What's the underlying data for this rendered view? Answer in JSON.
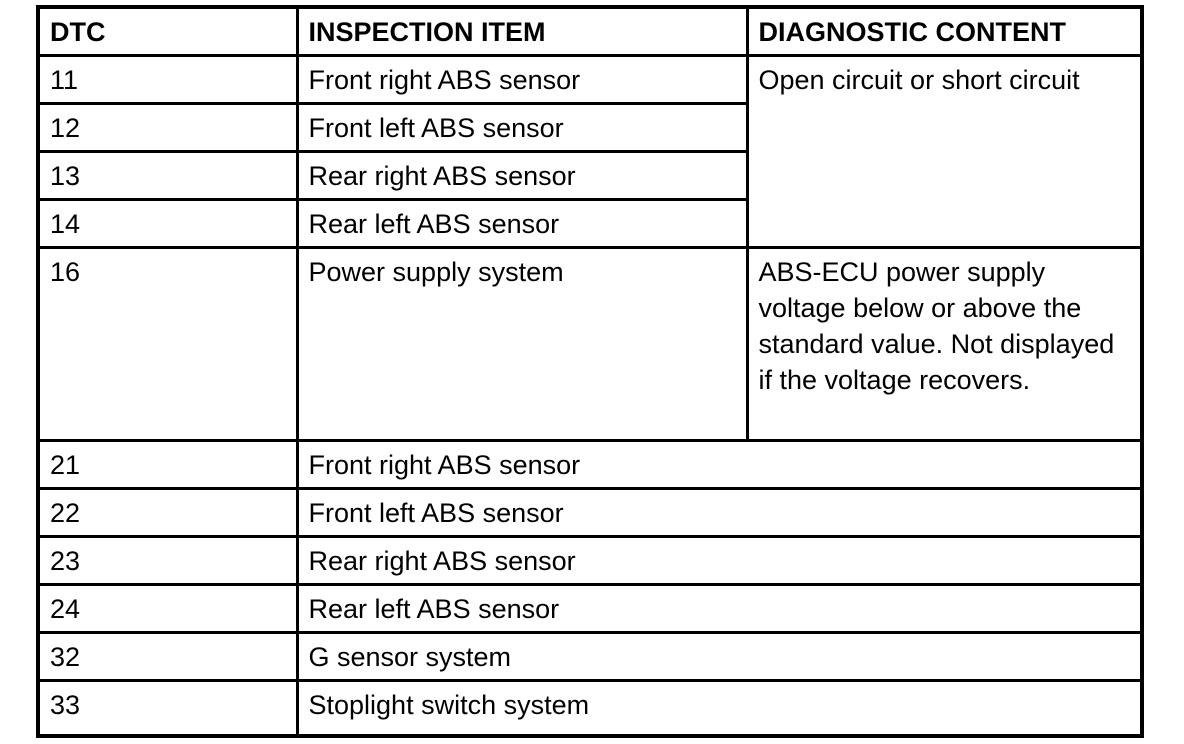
{
  "table": {
    "headers": {
      "dtc": "DTC",
      "inspection_item": "INSPECTION ITEM",
      "diagnostic_content": "DIAGNOSTIC CONTENT"
    },
    "rows": [
      {
        "dtc": "11",
        "item": "Front right ABS sensor",
        "content": "Open circuit or short circuit"
      },
      {
        "dtc": "12",
        "item": "Front left ABS sensor"
      },
      {
        "dtc": "13",
        "item": "Rear right ABS sensor"
      },
      {
        "dtc": "14",
        "item": "Rear left ABS sensor"
      },
      {
        "dtc": "16",
        "item": "Power supply system",
        "content": "ABS-ECU power supply voltage below or above the standard value. Not displayed if the voltage recovers."
      },
      {
        "dtc": "21",
        "item": "Front right ABS sensor"
      },
      {
        "dtc": "22",
        "item": "Front left ABS sensor"
      },
      {
        "dtc": "23",
        "item": "Rear right ABS sensor"
      },
      {
        "dtc": "24",
        "item": "Rear left ABS sensor"
      },
      {
        "dtc": "32",
        "item": "G sensor system"
      },
      {
        "dtc": "33",
        "item": "Stoplight switch system"
      }
    ],
    "colors": {
      "border": "#000000",
      "background": "#ffffff",
      "text": "#000000"
    }
  }
}
